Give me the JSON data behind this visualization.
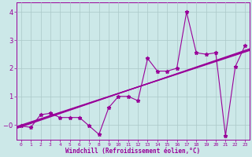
{
  "title": "",
  "xlabel": "Windchill (Refroidissement éolien,°C)",
  "ylabel": "",
  "x_data": [
    0,
    1,
    2,
    3,
    4,
    5,
    6,
    7,
    8,
    9,
    10,
    11,
    12,
    13,
    14,
    15,
    16,
    17,
    18,
    19,
    20,
    21,
    22,
    23
  ],
  "y_scatter": [
    -0.05,
    -0.1,
    0.35,
    0.4,
    0.25,
    0.25,
    0.25,
    -0.05,
    -0.35,
    0.6,
    1.0,
    1.0,
    0.85,
    2.35,
    1.9,
    1.9,
    2.0,
    4.0,
    2.55,
    2.5,
    2.55,
    -0.4,
    2.05,
    2.8
  ],
  "line_color": "#990099",
  "bg_color": "#cce8e8",
  "grid_color": "#aac8c8",
  "ylim": [
    -0.55,
    4.35
  ],
  "xlim": [
    -0.5,
    23.5
  ],
  "yticks": [
    0,
    1,
    2,
    3,
    4
  ],
  "xticks": [
    0,
    1,
    2,
    3,
    4,
    5,
    6,
    7,
    8,
    9,
    10,
    11,
    12,
    13,
    14,
    15,
    16,
    17,
    18,
    19,
    20,
    21,
    22,
    23
  ],
  "trend_lines": [
    [
      -0.02,
      0.113
    ],
    [
      -0.08,
      0.118
    ],
    [
      -0.05,
      0.1155
    ]
  ]
}
